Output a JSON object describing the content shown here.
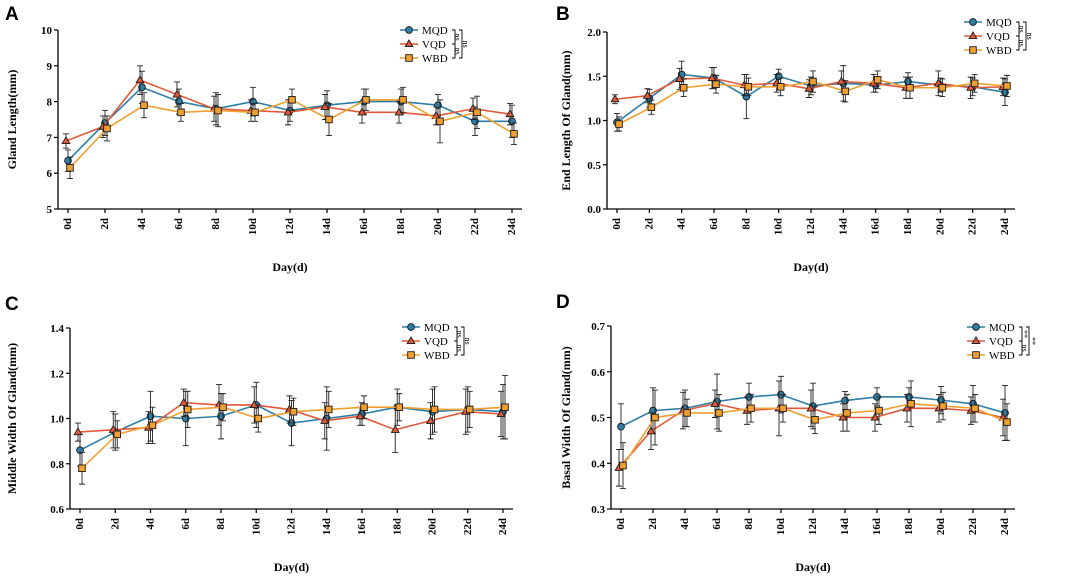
{
  "colors": {
    "MQD": "#2e7ea6",
    "VQD": "#e05a3a",
    "WBD": "#f0a030"
  },
  "legend": [
    "MQD",
    "VQD",
    "WBD"
  ],
  "chart_data": [
    {
      "type": "line",
      "panel": "A",
      "xlabel": "Day(d)",
      "ylabel": "Gland Length(mm)",
      "ylim": [
        5,
        10
      ],
      "yticks": [
        "5",
        "6",
        "7",
        "8",
        "9",
        "10"
      ],
      "categories": [
        "0d",
        "2d",
        "4d",
        "6d",
        "8d",
        "10d",
        "12d",
        "14d",
        "16d",
        "18d",
        "20d",
        "22d",
        "24d"
      ],
      "series": [
        {
          "name": "MQD",
          "values": [
            6.35,
            7.4,
            8.4,
            8.0,
            7.8,
            8.0,
            7.75,
            7.9,
            8.0,
            8.0,
            7.9,
            7.45,
            7.45
          ],
          "errors": [
            0.3,
            0.35,
            0.45,
            0.35,
            0.45,
            0.4,
            0.3,
            0.4,
            0.35,
            0.35,
            0.3,
            0.4,
            0.45
          ]
        },
        {
          "name": "VQD",
          "values": [
            6.9,
            7.3,
            8.6,
            8.2,
            7.8,
            7.75,
            7.7,
            7.85,
            7.7,
            7.7,
            7.6,
            7.8,
            7.65
          ],
          "errors": [
            0.2,
            0.3,
            0.4,
            0.35,
            0.35,
            0.3,
            0.35,
            0.35,
            0.3,
            0.3,
            0.25,
            0.3,
            0.3
          ]
        },
        {
          "name": "WBD",
          "values": [
            6.15,
            7.25,
            7.9,
            7.7,
            7.75,
            7.7,
            8.05,
            7.5,
            8.05,
            8.05,
            7.45,
            7.7,
            7.1
          ],
          "errors": [
            0.3,
            0.35,
            0.35,
            0.25,
            0.45,
            0.25,
            0.3,
            0.45,
            0.3,
            0.35,
            0.6,
            0.45,
            0.3
          ]
        }
      ],
      "significance": [
        "ns",
        "ns",
        "ns"
      ]
    },
    {
      "type": "line",
      "panel": "B",
      "xlabel": "Day(d)",
      "ylabel": "End Length Of Gland(mm)",
      "ylim": [
        0,
        2.0
      ],
      "yticks": [
        "0.0",
        "0.5",
        "1.0",
        "1.5",
        "2.0"
      ],
      "categories": [
        "0d",
        "2d",
        "4d",
        "6d",
        "8d",
        "10d",
        "12d",
        "14d",
        "16d",
        "18d",
        "20d",
        "22d",
        "24d"
      ],
      "series": [
        {
          "name": "MQD",
          "values": [
            0.98,
            1.25,
            1.52,
            1.48,
            1.27,
            1.5,
            1.39,
            1.42,
            1.4,
            1.44,
            1.4,
            1.38,
            1.32
          ],
          "errors": [
            0.1,
            0.1,
            0.15,
            0.12,
            0.25,
            0.08,
            0.1,
            0.2,
            0.08,
            0.1,
            0.08,
            0.1,
            0.15
          ]
        },
        {
          "name": "VQD",
          "values": [
            1.24,
            1.28,
            1.47,
            1.48,
            1.4,
            1.42,
            1.36,
            1.44,
            1.42,
            1.37,
            1.42,
            1.37,
            1.38
          ],
          "errors": [
            0.05,
            0.08,
            0.12,
            0.12,
            0.12,
            0.1,
            0.1,
            0.12,
            0.1,
            0.12,
            0.14,
            0.12,
            0.1
          ]
        },
        {
          "name": "WBD",
          "values": [
            0.96,
            1.15,
            1.37,
            1.41,
            1.38,
            1.38,
            1.44,
            1.33,
            1.46,
            1.37,
            1.37,
            1.42,
            1.39
          ],
          "errors": [
            0.08,
            0.08,
            0.1,
            0.1,
            0.1,
            0.1,
            0.12,
            0.12,
            0.1,
            0.12,
            0.1,
            0.1,
            0.12
          ]
        }
      ],
      "significance": [
        "ns",
        "ns",
        "ns"
      ]
    },
    {
      "type": "line",
      "panel": "C",
      "xlabel": "Day(d)",
      "ylabel": "Middle Width Of Gland(mm)",
      "ylim": [
        0.6,
        1.4
      ],
      "yticks": [
        "0.6",
        "0.8",
        "1.0",
        "1.2",
        "1.4"
      ],
      "categories": [
        "0d",
        "2d",
        "4d",
        "6d",
        "8d",
        "10d",
        "12d",
        "14d",
        "16d",
        "18d",
        "20d",
        "22d",
        "24d"
      ],
      "series": [
        {
          "name": "MQD",
          "values": [
            0.86,
            0.94,
            1.01,
            1.0,
            1.01,
            1.06,
            0.98,
            1.0,
            1.02,
            1.05,
            1.03,
            1.04,
            1.03
          ],
          "errors": [
            0.07,
            0.08,
            0.11,
            0.12,
            0.1,
            0.1,
            0.1,
            0.14,
            0.05,
            0.08,
            0.1,
            0.1,
            0.12
          ]
        },
        {
          "name": "VQD",
          "values": [
            0.94,
            0.95,
            0.96,
            1.07,
            1.06,
            1.06,
            1.04,
            0.99,
            1.01,
            0.95,
            0.99,
            1.03,
            1.02
          ],
          "errors": [
            0.04,
            0.08,
            0.07,
            0.06,
            0.09,
            0.08,
            0.06,
            0.08,
            0.04,
            0.1,
            0.08,
            0.1,
            0.1
          ]
        },
        {
          "name": "WBD",
          "values": [
            0.78,
            0.93,
            0.97,
            1.04,
            1.05,
            1.0,
            1.03,
            1.04,
            1.05,
            1.05,
            1.04,
            1.04,
            1.05
          ],
          "errors": [
            0.07,
            0.06,
            0.08,
            0.08,
            0.06,
            0.06,
            0.06,
            0.08,
            0.05,
            0.06,
            0.1,
            0.08,
            0.14
          ]
        }
      ],
      "significance": [
        "ns",
        "ns",
        "ns"
      ]
    },
    {
      "type": "line",
      "panel": "D",
      "xlabel": "Day(d)",
      "ylabel": "Basal Width Of Gland(mm)",
      "ylim": [
        0.3,
        0.7
      ],
      "yticks": [
        "0.3",
        "0.4",
        "0.5",
        "0.6",
        "0.7"
      ],
      "categories": [
        "0d",
        "2d",
        "4d",
        "6d",
        "8d",
        "10d",
        "12d",
        "14d",
        "16d",
        "18d",
        "20d",
        "22d",
        "24d"
      ],
      "series": [
        {
          "name": "MQD",
          "values": [
            0.48,
            0.515,
            0.52,
            0.535,
            0.545,
            0.55,
            0.525,
            0.537,
            0.545,
            0.545,
            0.538,
            0.53,
            0.51
          ],
          "errors": [
            0.05,
            0.05,
            0.04,
            0.06,
            0.03,
            0.04,
            0.05,
            0.02,
            0.02,
            0.02,
            0.03,
            0.04,
            0.06
          ]
        },
        {
          "name": "VQD",
          "values": [
            0.39,
            0.47,
            0.515,
            0.53,
            0.515,
            0.52,
            0.52,
            0.5,
            0.5,
            0.52,
            0.52,
            0.515,
            0.5
          ],
          "errors": [
            0.04,
            0.04,
            0.04,
            0.03,
            0.03,
            0.06,
            0.04,
            0.03,
            0.03,
            0.03,
            0.03,
            0.03,
            0.04
          ]
        },
        {
          "name": "WBD",
          "values": [
            0.395,
            0.5,
            0.51,
            0.51,
            0.52,
            0.52,
            0.495,
            0.51,
            0.515,
            0.53,
            0.525,
            0.52,
            0.49
          ],
          "errors": [
            0.05,
            0.06,
            0.03,
            0.04,
            0.03,
            0.03,
            0.03,
            0.04,
            0.03,
            0.05,
            0.03,
            0.03,
            0.04
          ]
        }
      ],
      "significance": [
        "**",
        "ns",
        "**"
      ]
    }
  ]
}
